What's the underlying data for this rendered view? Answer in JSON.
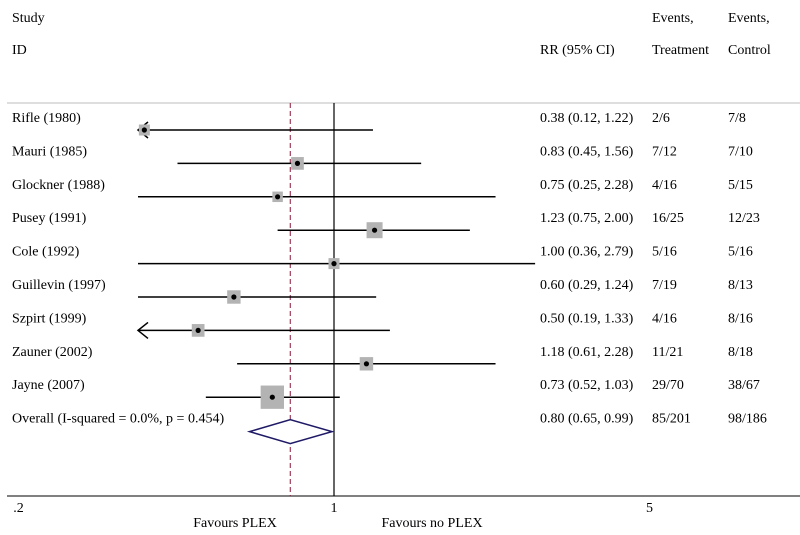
{
  "header": {
    "study_top": "Study",
    "study_bottom": "ID",
    "rr": "RR (95% CI)",
    "treat_top": "Events,",
    "treat_bottom": "Treatment",
    "ctrl_top": "Events,",
    "ctrl_bottom": "Control"
  },
  "chart_data": {
    "type": "forest",
    "x_scale": "log",
    "xlim": [
      0.2,
      5
    ],
    "x_ticks": [
      {
        "value": 0.2,
        "label": ".2"
      },
      {
        "value": 1,
        "label": "1"
      },
      {
        "value": 5,
        "label": "5"
      }
    ],
    "null_line": 1,
    "overall_line": 0.8,
    "xlabel_left": "Favours PLEX",
    "xlabel_right": "Favours no PLEX",
    "studies": [
      {
        "label": "Rifle (1980)",
        "rr": 0.38,
        "lo": 0.12,
        "hi": 1.22,
        "rr_text": "0.38 (0.12, 1.22)",
        "treatment": "2/6",
        "control": "7/8",
        "weight": 0.25,
        "lower_truncated": true
      },
      {
        "label": "Mauri (1985)",
        "rr": 0.83,
        "lo": 0.45,
        "hi": 1.56,
        "rr_text": "0.83 (0.45, 1.56)",
        "treatment": "7/12",
        "control": "7/10",
        "weight": 0.45
      },
      {
        "label": "Glockner (1988)",
        "rr": 0.75,
        "lo": 0.25,
        "hi": 2.28,
        "rr_text": "0.75 (0.25, 2.28)",
        "treatment": "4/16",
        "control": "5/15",
        "weight": 0.2
      },
      {
        "label": "Pusey (1991)",
        "rr": 1.23,
        "lo": 0.75,
        "hi": 2.0,
        "rr_text": "1.23 (0.75, 2.00)",
        "treatment": "16/25",
        "control": "12/23",
        "weight": 1.0
      },
      {
        "label": "Cole (1992)",
        "rr": 1.0,
        "lo": 0.36,
        "hi": 2.79,
        "rr_text": "1.00 (0.36, 2.79)",
        "treatment": "5/16",
        "control": "5/16",
        "weight": 0.25
      },
      {
        "label": "Guillevin (1997)",
        "rr": 0.6,
        "lo": 0.29,
        "hi": 1.24,
        "rr_text": "0.60 (0.29, 1.24)",
        "treatment": "7/19",
        "control": "8/13",
        "weight": 0.55
      },
      {
        "label": "Szpirt (1999)",
        "rr": 0.5,
        "lo": 0.19,
        "hi": 1.33,
        "rr_text": "0.50 (0.19, 1.33)",
        "treatment": "4/16",
        "control": "8/16",
        "weight": 0.45,
        "lower_truncated": true
      },
      {
        "label": "Zauner (2002)",
        "rr": 1.18,
        "lo": 0.61,
        "hi": 2.28,
        "rr_text": "1.18 (0.61, 2.28)",
        "treatment": "11/21",
        "control": "8/18",
        "weight": 0.55
      },
      {
        "label": "Jayne (2007)",
        "rr": 0.73,
        "lo": 0.52,
        "hi": 1.03,
        "rr_text": "0.73 (0.52, 1.03)",
        "treatment": "29/70",
        "control": "38/67",
        "weight": 3.0
      }
    ],
    "overall": {
      "label": "Overall  (I-squared = 0.0%, p = 0.454)",
      "rr": 0.8,
      "lo": 0.65,
      "hi": 0.99,
      "rr_text": "0.80 (0.65, 0.99)",
      "treatment": "85/201",
      "control": "98/186"
    },
    "colors": {
      "line": "#000000",
      "box": "#b3b3b3",
      "diamond": "#1f1a66",
      "overall_line": "#8b1a3a",
      "divider": "#bdbdbd"
    }
  }
}
